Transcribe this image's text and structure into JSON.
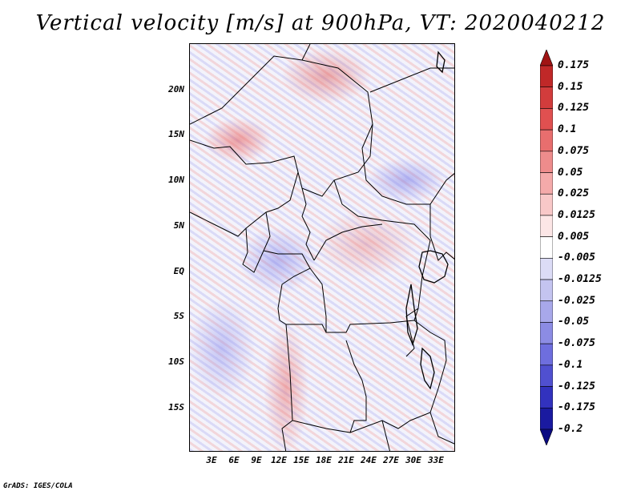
{
  "title": "Vertical velocity [m/s] at 900hPa, VT: 2020040212",
  "credit": "GrADS: IGES/COLA",
  "map": {
    "lat_labels": [
      "20N",
      "15N",
      "10N",
      "5N",
      "EQ",
      "5S",
      "10S",
      "15S"
    ],
    "lon_labels": [
      "3E",
      "6E",
      "9E",
      "12E",
      "15E",
      "18E",
      "21E",
      "24E",
      "27E",
      "30E",
      "33E"
    ]
  },
  "colorbar": {
    "labels": [
      "0.175",
      "0.15",
      "0.125",
      "0.1",
      "0.075",
      "0.05",
      "0.025",
      "0.0125",
      "0.005",
      "-0.005",
      "-0.0125",
      "-0.025",
      "-0.05",
      "-0.075",
      "-0.1",
      "-0.125",
      "-0.175",
      "-0.2"
    ],
    "colors": [
      "#a01414",
      "#c02828",
      "#d23c3c",
      "#e05050",
      "#e86e6e",
      "#ee8c8c",
      "#f4aaaa",
      "#f8c8c8",
      "#fce6e6",
      "#ffffff",
      "#dcdcf6",
      "#c4c4f0",
      "#a8a8ea",
      "#8c8ce4",
      "#6e6ede",
      "#5050d0",
      "#3232be",
      "#1a1aa0",
      "#0a0a82"
    ]
  }
}
